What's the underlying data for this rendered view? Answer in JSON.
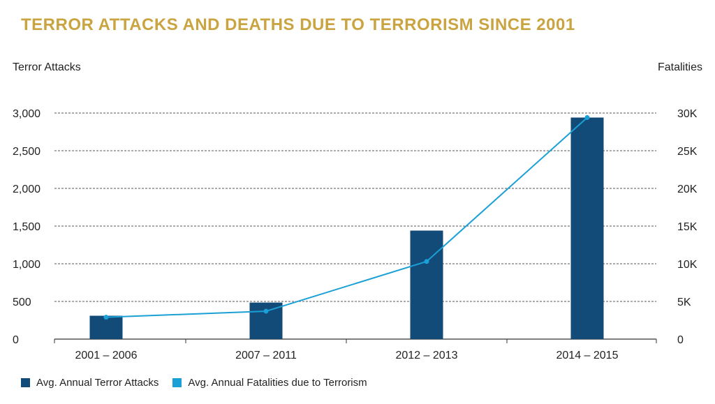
{
  "title": "TERROR ATTACKS AND DEATHS DUE TO TERRORISM SINCE 2001",
  "colors": {
    "title": "#c9a441",
    "bars": "#124a78",
    "line": "#1aa0d6",
    "text": "#222222"
  },
  "legend": [
    {
      "label": "Avg. Annual Terror Attacks",
      "color": "#124a78"
    },
    {
      "label": "Avg. Annual Fatalities due to Terrorism",
      "color": "#1aa0d6"
    }
  ],
  "chart_data": {
    "type": "bar+line",
    "categories": [
      "2001 – 2006",
      "2007 – 2011",
      "2012 – 2013",
      "2014 – 2015"
    ],
    "ylabel_left": "Terror Attacks",
    "ylabel_right": "Fatalities",
    "ylim_left": [
      0,
      3000
    ],
    "ylim_right": [
      0,
      30000
    ],
    "yticks_left": [
      "0",
      "500",
      "1,000",
      "1,500",
      "2,000",
      "2,500",
      "3,000"
    ],
    "yticks_right": [
      "0",
      "5K",
      "10K",
      "15K",
      "20K",
      "25K",
      "30K"
    ],
    "series": [
      {
        "name": "Avg. Annual Terror Attacks",
        "type": "bar",
        "axis": "left",
        "values": [
          310,
          485,
          1440,
          2940
        ]
      },
      {
        "name": "Avg. Annual Fatalities due to Terrorism",
        "type": "line",
        "axis": "right",
        "values": [
          2900,
          3700,
          10300,
          29400
        ]
      }
    ],
    "grid": "horizontal dashed"
  }
}
